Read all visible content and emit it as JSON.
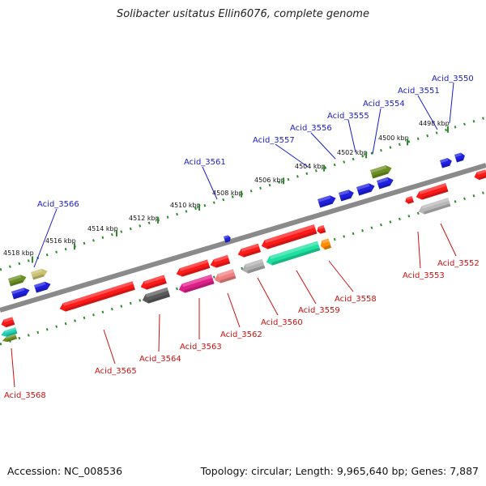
{
  "title": "Solibacter usitatus Ellin6076, complete genome",
  "footer": {
    "accession": "Accession: NC_008536",
    "info": "Topology: circular; Length: 9,965,640 bp; Genes: 7,887"
  },
  "colors": {
    "backbone": "#888888",
    "dots": "#2e8b2e",
    "forward_label": "#1c1cc8",
    "reverse_label": "#cc1111"
  },
  "kbp_labels": [
    "4518 kbp",
    "4516 kbp",
    "4514 kbp",
    "4512 kbp",
    "4510 kbp",
    "4508 kbp",
    "4506 kbp",
    "4504 kbp",
    "4502 kbp",
    "4500 kbp",
    "4498 kbp"
  ],
  "forward_genes": [
    "Acid_3566",
    "Acid_3561",
    "Acid_3557",
    "Acid_3556",
    "Acid_3555",
    "Acid_3554",
    "Acid_3551",
    "Acid_3550"
  ],
  "reverse_genes": [
    "Acid_3568",
    "Acid_3565",
    "Acid_3564",
    "Acid_3563",
    "Acid_3562",
    "Acid_3560",
    "Acid_3559",
    "Acid_3558",
    "Acid_3553",
    "Acid_3552"
  ]
}
